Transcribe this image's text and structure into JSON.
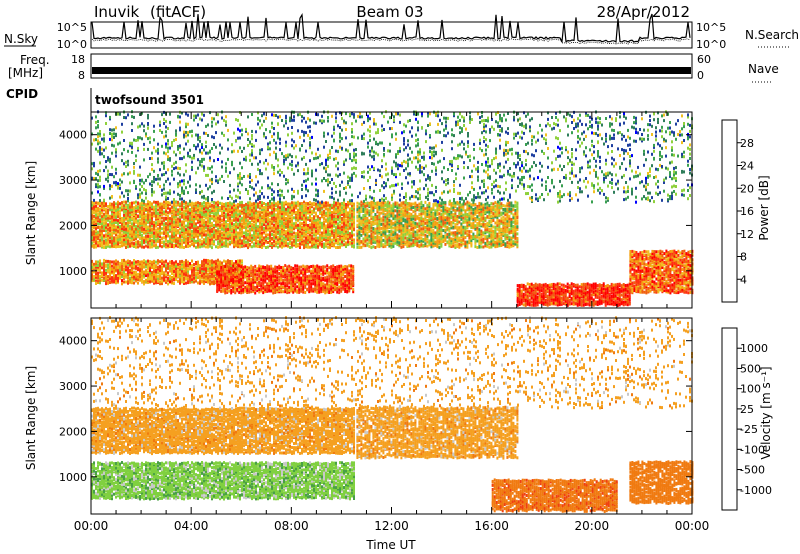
{
  "header": {
    "station": "Inuvik",
    "mode": "(fitACF)",
    "beam": "Beam 03",
    "date": "28/Apr/2012"
  },
  "noise_panel": {
    "left_label": "N.Sky",
    "right_label": "N.Search",
    "ytick_top": "10^5",
    "ytick_bottom": "10^0"
  },
  "freq_panel": {
    "left_label_line1": "Freq.",
    "left_label_line2": "[MHz]",
    "right_label": "Nave",
    "ytick_top": "18",
    "ytick_bottom": "8",
    "right_tick_top": "60",
    "right_tick_bottom": "0"
  },
  "cpid_panel": {
    "label": "CPID",
    "program": "twofsound 3501"
  },
  "chart_data": [
    {
      "type": "heatmap",
      "quantity": "power",
      "ylabel": "Slant Range [km]",
      "colorbar_label": "Power [dB]",
      "ylim": [
        180,
        4500
      ],
      "yticks": [
        1000,
        2000,
        3000,
        4000
      ],
      "colorbar_ticks": [
        4,
        8,
        12,
        16,
        20,
        24,
        28
      ],
      "colorbar_range": [
        0,
        32
      ],
      "colorscale": [
        "#0000ff",
        "#1e3fa0",
        "#2e7d5a",
        "#39a050",
        "#8fd13c",
        "#f0c020",
        "#f5a010",
        "#f06010",
        "#ff3010",
        "#ff0000"
      ],
      "bands": [
        {
          "start_h": 0,
          "end_h": 10.5,
          "r_lo": 1500,
          "r_hi": 2500,
          "level": 20,
          "density": 0.88
        },
        {
          "start_h": 0,
          "end_h": 6,
          "r_lo": 700,
          "r_hi": 1200,
          "level": 22,
          "density": 0.85
        },
        {
          "start_h": 5,
          "end_h": 10.5,
          "r_lo": 500,
          "r_hi": 1100,
          "level": 26,
          "density": 0.88
        },
        {
          "start_h": 10.6,
          "end_h": 17,
          "r_lo": 1500,
          "r_hi": 2500,
          "level": 18,
          "density": 0.8
        },
        {
          "start_h": 17,
          "end_h": 21.5,
          "r_lo": 180,
          "r_hi": 700,
          "level": 28,
          "density": 0.9
        },
        {
          "start_h": 21.5,
          "end_h": 24,
          "r_lo": 500,
          "r_hi": 1400,
          "level": 24,
          "density": 0.85
        },
        {
          "start_h": 0,
          "end_h": 24,
          "r_lo": 2500,
          "r_hi": 4500,
          "level": 10,
          "density": 0.15
        }
      ]
    },
    {
      "type": "heatmap",
      "quantity": "velocity",
      "xlabel": "Time UT",
      "ylabel": "Slant Range [km]",
      "colorbar_label": "Velocity [m s⁻¹]",
      "ylim": [
        180,
        4500
      ],
      "yticks": [
        1000,
        2000,
        3000,
        4000
      ],
      "colorbar_ticks": [
        1000,
        500,
        100,
        25,
        -25,
        -100,
        -500,
        -1000
      ],
      "colorscale": [
        "#1e3fc8",
        "#1e6aa0",
        "#2e8a5a",
        "#49a046",
        "#80d040",
        "#c8c8c8",
        "#f5a020",
        "#f07a10",
        "#f04010",
        "#ff0000"
      ],
      "bands": [
        {
          "start_h": 0,
          "end_h": 10.5,
          "r_lo": 1500,
          "r_hi": 2500,
          "level": 0,
          "density": 0.85
        },
        {
          "start_h": 0,
          "end_h": 10.5,
          "r_lo": 500,
          "r_hi": 1300,
          "level": 80,
          "density": 0.85
        },
        {
          "start_h": 10.6,
          "end_h": 17,
          "r_lo": 1400,
          "r_hi": 2500,
          "level": 0,
          "density": 0.75
        },
        {
          "start_h": 16,
          "end_h": 21,
          "r_lo": 200,
          "r_hi": 900,
          "level": -80,
          "density": 0.85
        },
        {
          "start_h": 21.5,
          "end_h": 24,
          "r_lo": 400,
          "r_hi": 1300,
          "level": -70,
          "density": 0.8
        },
        {
          "start_h": 0,
          "end_h": 24,
          "r_lo": 2500,
          "r_hi": 4500,
          "level": 0,
          "density": 0.12
        }
      ],
      "xticks": [
        "00:00",
        "04:00",
        "08:00",
        "12:00",
        "16:00",
        "20:00",
        "00:00"
      ]
    }
  ]
}
